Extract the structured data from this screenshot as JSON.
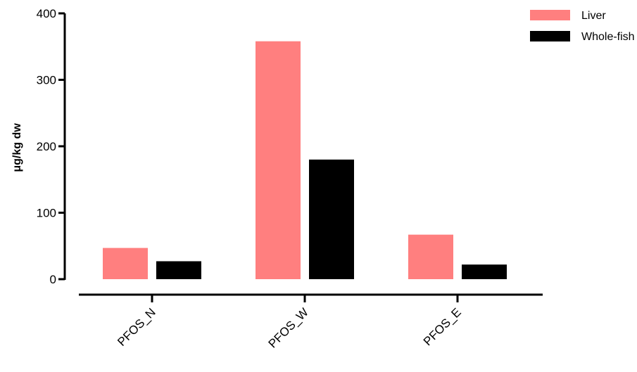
{
  "chart_data": {
    "type": "bar",
    "categories": [
      "PFOS_N",
      "PFOS_W",
      "PFOS_E"
    ],
    "series": [
      {
        "name": "Liver",
        "values": [
          47,
          358,
          67
        ],
        "color": "#ff7f7f"
      },
      {
        "name": "Whole-fish",
        "values": [
          27,
          180,
          22
        ],
        "color": "#000000"
      }
    ],
    "title": "",
    "xlabel": "",
    "ylabel": "μg/kg dw",
    "ylim": [
      0,
      400
    ],
    "yticks": [
      0,
      100,
      200,
      300,
      400
    ],
    "grid": false,
    "legend_position": "top-right"
  }
}
